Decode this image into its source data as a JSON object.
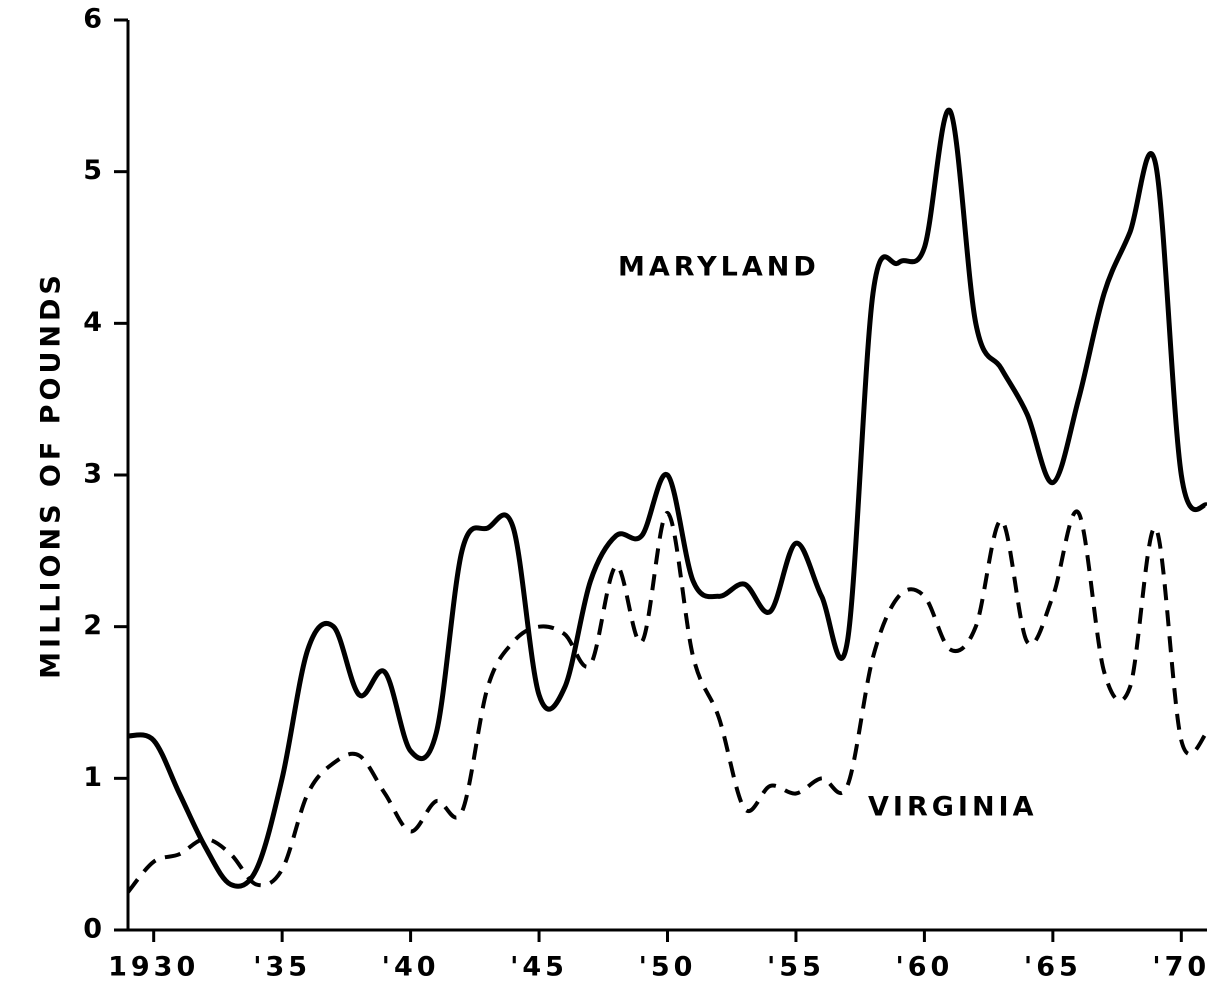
{
  "chart_data": {
    "type": "line",
    "y_label": "MILLIONS OF POUNDS",
    "x": [
      1929,
      1930,
      1931,
      1932,
      1933,
      1934,
      1935,
      1936,
      1937,
      1938,
      1939,
      1940,
      1941,
      1942,
      1943,
      1944,
      1945,
      1946,
      1947,
      1948,
      1949,
      1950,
      1951,
      1952,
      1953,
      1954,
      1955,
      1956,
      1957,
      1958,
      1959,
      1960,
      1961,
      1962,
      1963,
      1964,
      1965,
      1966,
      1967,
      1968,
      1969,
      1970,
      1971
    ],
    "series": [
      {
        "name": "MARYLAND",
        "color": "#000000",
        "dash": false,
        "values": [
          1.28,
          1.25,
          0.9,
          0.55,
          0.3,
          0.4,
          1.0,
          1.85,
          2.0,
          1.55,
          1.7,
          1.18,
          1.3,
          2.5,
          2.65,
          2.65,
          1.55,
          1.6,
          2.3,
          2.6,
          2.6,
          3.0,
          2.3,
          2.2,
          2.28,
          2.1,
          2.55,
          2.2,
          1.9,
          4.2,
          4.4,
          4.5,
          5.4,
          4.0,
          3.7,
          3.4,
          2.95,
          3.5,
          4.2,
          4.6,
          5.05,
          3.0,
          2.8
        ]
      },
      {
        "name": "VIRGINIA",
        "color": "#000000",
        "dash": true,
        "values": [
          0.25,
          0.45,
          0.5,
          0.6,
          0.5,
          0.3,
          0.4,
          0.9,
          1.1,
          1.15,
          0.9,
          0.65,
          0.85,
          0.78,
          1.6,
          1.9,
          2.0,
          1.95,
          1.75,
          2.4,
          1.9,
          2.75,
          1.8,
          1.4,
          0.8,
          0.95,
          0.9,
          1.0,
          0.95,
          1.8,
          2.2,
          2.2,
          1.85,
          2.0,
          2.7,
          1.9,
          2.2,
          2.75,
          1.7,
          1.6,
          2.65,
          1.25,
          1.3
        ]
      }
    ],
    "xlim": [
      1929,
      1971
    ],
    "xticks": [
      {
        "value": 1930,
        "label": "1930"
      },
      {
        "value": 1935,
        "label": "'35"
      },
      {
        "value": 1940,
        "label": "'40"
      },
      {
        "value": 1945,
        "label": "'45"
      },
      {
        "value": 1950,
        "label": "'50"
      },
      {
        "value": 1955,
        "label": "'55"
      },
      {
        "value": 1960,
        "label": "'60"
      },
      {
        "value": 1965,
        "label": "'65"
      },
      {
        "value": 1970,
        "label": "'70"
      }
    ],
    "ylim": [
      0,
      6
    ],
    "yticks": [
      0,
      1,
      2,
      3,
      4,
      5,
      6
    ]
  }
}
